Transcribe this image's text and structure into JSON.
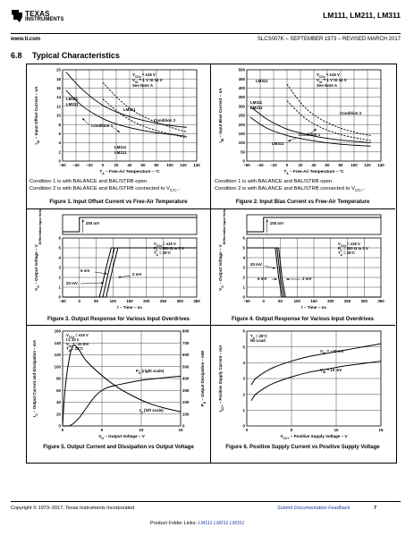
{
  "header": {
    "logo_line1": "TEXAS",
    "logo_line2": "INSTRUMENTS",
    "part_numbers": "LM111, LM211, LM311",
    "website": "www.ti.com",
    "doc_id": "SLCS007K – SEPTEMBER 1973 – REVISED MARCH 2017"
  },
  "section": {
    "number": "6.8",
    "title": "Typical Characteristics"
  },
  "figures": [
    {
      "caption": "Figure 1. Input Offset Current vs Free-Air Temperature",
      "notes": [
        "Condition 1 is with BALANCE and BAL/STRB open.",
        "Condition 2 is with BALANCE and BAL/STRB connected to V"
      ],
      "note_sub": "CC–",
      "ylabel": "I",
      "ylabel_sub": "IO",
      "ylabel_rest": " – Input Offset Current – nA",
      "xlabel": "T",
      "xlabel_sub": "A",
      "xlabel_rest": " – Free-Air Temperature – °C",
      "legend": [
        "V",
        "CC±",
        " = ±15 V",
        "V",
        "IO",
        " = 1 V to 14 V",
        "See Note A"
      ],
      "labels": [
        "LM111",
        "LM211",
        "LM311",
        "Condition 1",
        "Condition 2",
        "LM111",
        "LM211"
      ],
      "chart_data": {
        "type": "line",
        "xlim": [
          -60,
          140
        ],
        "ylim": [
          0,
          20
        ],
        "xticks": [
          "–60",
          "–40",
          "–20",
          "0",
          "20",
          "40",
          "60",
          "80",
          "100",
          "120",
          "140"
        ],
        "yticks": [
          "0",
          "2",
          "4",
          "6",
          "8",
          "10",
          "12",
          "14",
          "16",
          "18",
          "20"
        ],
        "series": [
          {
            "x": [
              -55,
              -30,
              0,
              25,
              50,
              80,
              110,
              125
            ],
            "y": [
              19.5,
              15.6,
              12.2,
              10.5,
              9.3,
              8.3,
              7.6,
              7.4
            ]
          },
          {
            "x": [
              -55,
              -30,
              0,
              25,
              50,
              80,
              110,
              125
            ],
            "y": [
              15.5,
              12.0,
              9.3,
              7.9,
              7.0,
              6.2,
              5.7,
              5.4
            ]
          },
          {
            "x": [
              0,
              25,
              50,
              80,
              110,
              125
            ],
            "y": [
              17.2,
              13.4,
              10.6,
              8.5,
              7.0,
              6.4
            ]
          },
          {
            "x": [
              0,
              25,
              50,
              80,
              110,
              125
            ],
            "y": [
              13.6,
              10.5,
              8.3,
              6.7,
              5.6,
              5.1
            ]
          }
        ]
      }
    },
    {
      "caption": "Figure 2. Input Bias Current vs Free-Air Temperature",
      "notes": [
        "Condition 1 is with BALANCE and BAL/STRB open.",
        "Condition 2 is with BALANCE and BAL/STRB connected to V"
      ],
      "note_sub": "CC–",
      "ylabel": "I",
      "ylabel_sub": "IB",
      "ylabel_rest": " – Input Bias Current – nA",
      "xlabel": "T",
      "xlabel_sub": "A",
      "xlabel_rest": " – Free-Air Temperature – °C",
      "legend": [
        "V",
        "CC±",
        " = ±15 V",
        "V",
        "IO",
        " = 1 V to 14 V",
        "See Note A"
      ],
      "labels": [
        "LM311",
        "LM111",
        "LM211",
        "Condition 1",
        "Condition 2",
        "LM311"
      ],
      "chart_data": {
        "type": "line",
        "xlim": [
          -60,
          140
        ],
        "ylim": [
          0,
          500
        ],
        "xticks": [
          "–60",
          "–40",
          "–20",
          "0",
          "20",
          "40",
          "60",
          "80",
          "100",
          "120",
          "140"
        ],
        "yticks": [
          "0",
          "50",
          "100",
          "150",
          "200",
          "250",
          "300",
          "350",
          "400",
          "450",
          "500"
        ],
        "series": [
          {
            "x": [
              -55,
              -30,
              0,
              25,
              50,
              80,
              110,
              125
            ],
            "y": [
              300,
              230,
              175,
              150,
              130,
              115,
              105,
              100
            ]
          },
          {
            "x": [
              -55,
              -30,
              0,
              25,
              50,
              80,
              110,
              125
            ],
            "y": [
              240,
              180,
              140,
              120,
              105,
              92,
              85,
              82
            ]
          },
          {
            "x": [
              0,
              25,
              50,
              80,
              110,
              125
            ],
            "y": [
              420,
              300,
              230,
              180,
              150,
              140
            ]
          },
          {
            "x": [
              0,
              25,
              50,
              80,
              110,
              125
            ],
            "y": [
              330,
              240,
              185,
              145,
              122,
              112
            ]
          }
        ]
      }
    },
    {
      "caption": "Figure 3. Output Response for Various Input Overdrives",
      "ylabel": "V",
      "ylabel_sub": "O",
      "ylabel_rest": " – Output Voltage – V",
      "top_ylabel": "Differential Input Voltage",
      "xlabel": "t – Time – ns",
      "step_label": "100 mV",
      "legend": [
        "V",
        "CC±",
        " = ±15 V",
        "R",
        "L",
        " = 500 Ω to 5 V",
        "T",
        "A",
        " = 25°C"
      ],
      "overdrives": [
        "5 mV",
        "2 mV",
        "20 mV"
      ],
      "chart_data": {
        "type": "line",
        "xlim": [
          -50,
          350
        ],
        "ylim": [
          0,
          6
        ],
        "xticks": [
          "–50",
          "0",
          "50",
          "100",
          "150",
          "200",
          "250",
          "300",
          "350"
        ],
        "yticks": [
          "0",
          "1",
          "2",
          "3",
          "4",
          "5",
          "6"
        ],
        "series": [
          {
            "name": "20 mV",
            "x": [
              -50,
              60,
              80,
              95,
              350
            ],
            "y": [
              0,
              0,
              3,
              5,
              5
            ]
          },
          {
            "name": "5 mV",
            "x": [
              -50,
              70,
              90,
              105,
              350
            ],
            "y": [
              0,
              0,
              3,
              5,
              5
            ]
          },
          {
            "name": "2 mV",
            "x": [
              -50,
              80,
              100,
              115,
              350
            ],
            "y": [
              0,
              0,
              3,
              5,
              5
            ]
          }
        ]
      }
    },
    {
      "caption": "Figure 4. Output Response for Various Input Overdrives",
      "ylabel": "V",
      "ylabel_sub": "O",
      "ylabel_rest": " – Output Voltage – V",
      "top_ylabel": "Differential Input Voltage",
      "xlabel": "t – Time – ns",
      "step_label": "100 mV",
      "legend": [
        "V",
        "CC±",
        " = ±15 V",
        "R",
        "L",
        " = 500 Ω to 5 V",
        "T",
        "A",
        " = 25°C"
      ],
      "overdrives": [
        "20 mV",
        "5 mV",
        "2 mV"
      ],
      "chart_data": {
        "type": "line",
        "xlim": [
          -50,
          350
        ],
        "ylim": [
          0,
          6
        ],
        "xticks": [
          "–50",
          "0",
          "50",
          "100",
          "150",
          "200",
          "250",
          "300",
          "350"
        ],
        "yticks": [
          "0",
          "1",
          "2",
          "3",
          "4",
          "5",
          "6"
        ],
        "series": [
          {
            "name": "20 mV",
            "x": [
              -50,
              35,
              45,
              55,
              350
            ],
            "y": [
              5,
              5,
              2,
              0,
              0
            ]
          },
          {
            "name": "5 mV",
            "x": [
              -50,
              40,
              50,
              60,
              350
            ],
            "y": [
              5,
              5,
              2,
              0,
              0
            ]
          },
          {
            "name": "2 mV",
            "x": [
              -50,
              45,
              55,
              65,
              350
            ],
            "y": [
              5,
              5,
              2,
              0,
              0
            ]
          }
        ]
      }
    },
    {
      "caption": "Figure 5. Output Current and Dissipation vs Output Voltage",
      "ylabel": "I",
      "ylabel_sub": "O",
      "ylabel_rest": " – Output Current and Dissipation – mA",
      "ylabel2": "P",
      "ylabel2_sub": "D",
      "ylabel2_rest": " – Output Dissipation – mW",
      "xlabel": "V",
      "xlabel_sub": "O",
      "xlabel_rest": " – Output Voltage – V",
      "legend": [
        "V",
        "CC±",
        " = ±15 V",
        "t ≤ 10 s",
        "V",
        "ID",
        " = –10 mV",
        "T",
        "A",
        " = 25°C"
      ],
      "curve_labels": [
        "P",
        "D",
        " (right scale)",
        "I",
        "O",
        " (left scale)"
      ],
      "chart_data": {
        "type": "line",
        "xlim": [
          0,
          15
        ],
        "ylim": [
          0,
          160
        ],
        "y2lim": [
          0,
          800
        ],
        "xticks": [
          "0",
          "5",
          "10",
          "15"
        ],
        "yticks": [
          "0",
          "20",
          "40",
          "60",
          "80",
          "100",
          "120",
          "140",
          "160"
        ],
        "y2ticks": [
          "0",
          "100",
          "200",
          "300",
          "400",
          "500",
          "600",
          "700",
          "800"
        ],
        "series": [
          {
            "name": "IO",
            "x": [
              0,
              0.3,
              0.8,
              1.3,
              2,
              3,
              5,
              7,
              9,
              11,
              13,
              15
            ],
            "y": [
              0,
              60,
              110,
              135,
              130,
              110,
              85,
              65,
              50,
              38,
              30,
              24
            ]
          },
          {
            "name": "PD",
            "x": [
              0,
              1,
              2,
              3,
              4,
              5,
              6,
              8,
              10,
              12,
              15
            ],
            "y": [
              0,
              5,
              60,
              150,
              240,
              300,
              330,
              360,
              385,
              400,
              420
            ]
          }
        ]
      }
    },
    {
      "caption": "Figure 6. Positive Supply Current vs Positive Supply Voltage",
      "ylabel": "I",
      "ylabel_sub": "CC+",
      "ylabel_rest": " – Positive Supply Current – mA",
      "xlabel": "V",
      "xlabel_sub": "CC+",
      "xlabel_rest": " – Positive Supply Voltage – V",
      "legend": [
        "T",
        "A",
        " = 25°C",
        "No Load"
      ],
      "curve_labels": [
        "V",
        "ID",
        " = –10 mV",
        "V",
        "ID",
        " = 10 mV"
      ],
      "chart_data": {
        "type": "line",
        "xlim": [
          0,
          15
        ],
        "ylim": [
          0,
          6
        ],
        "xticks": [
          "0",
          "5",
          "10",
          "15"
        ],
        "yticks": [
          "0",
          "1",
          "2",
          "3",
          "4",
          "5",
          "6"
        ],
        "series": [
          {
            "name": "VID = –10 mV",
            "x": [
              0.5,
              1,
              2,
              3,
              5,
              7,
              9,
              11,
              13,
              15
            ],
            "y": [
              2.6,
              3.0,
              3.4,
              3.7,
              4.1,
              4.4,
              4.6,
              4.8,
              5.0,
              5.2
            ]
          },
          {
            "name": "VID = 10 mV",
            "x": [
              0.5,
              1,
              2,
              3,
              5,
              7,
              9,
              11,
              13,
              15
            ],
            "y": [
              1.6,
              2.0,
              2.4,
              2.7,
              3.1,
              3.4,
              3.6,
              3.8,
              3.95,
              4.1
            ]
          }
        ]
      }
    }
  ],
  "footer": {
    "copyright": "Copyright © 1973–2017, Texas Instruments Incorporated",
    "feedback_link": "Submit Documentation Feedback",
    "page_number": "7",
    "folder_prefix": "Product Folder Links:",
    "links": [
      "LM111",
      "LM211",
      "LM311"
    ]
  }
}
